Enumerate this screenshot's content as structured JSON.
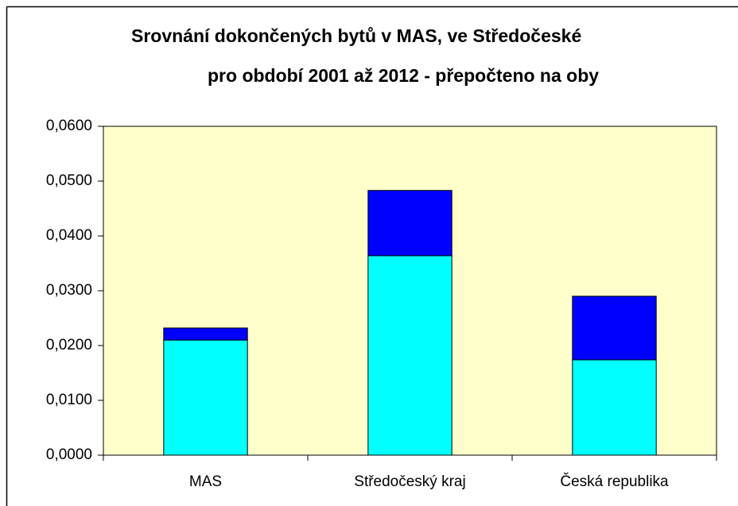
{
  "chart_data": {
    "type": "stacked_bar",
    "title": [
      "Srovnání dokončených bytů v MAS, ve Středočeské",
      "pro období 2001 až 2012 - přepočteno na oby"
    ],
    "categories": [
      "MAS",
      "Středočeský kraj",
      "Česká republika"
    ],
    "series": [
      {
        "color": "#00ffff",
        "values": [
          0.021,
          0.0364,
          0.0174
        ]
      },
      {
        "color": "#0000ff",
        "values": [
          0.0022,
          0.0119,
          0.0116
        ]
      }
    ],
    "ylim": [
      0,
      0.06
    ],
    "yticks": [
      {
        "value": 0,
        "label": "0,0000"
      },
      {
        "value": 0.01,
        "label": "0,0100"
      },
      {
        "value": 0.02,
        "label": "0,0200"
      },
      {
        "value": 0.03,
        "label": "0,0300"
      },
      {
        "value": 0.04,
        "label": "0,0400"
      },
      {
        "value": 0.05,
        "label": "0,0500"
      },
      {
        "value": 0.06,
        "label": "0,0600"
      }
    ],
    "plot_background": "#ffffcc",
    "grid": false
  }
}
